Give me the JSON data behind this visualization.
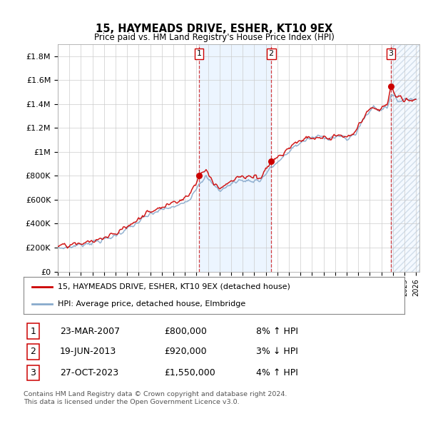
{
  "title": "15, HAYMEADS DRIVE, ESHER, KT10 9EX",
  "subtitle": "Price paid vs. HM Land Registry's House Price Index (HPI)",
  "ylabel_ticks": [
    "£0",
    "£200K",
    "£400K",
    "£600K",
    "£800K",
    "£1M",
    "£1.2M",
    "£1.4M",
    "£1.6M",
    "£1.8M"
  ],
  "ylabel_values": [
    0,
    200000,
    400000,
    600000,
    800000,
    1000000,
    1200000,
    1400000,
    1600000,
    1800000
  ],
  "ylim": [
    0,
    1900000
  ],
  "x_start_year": 1995,
  "x_end_year": 2026,
  "sale1": {
    "date_num": 2007.22,
    "price": 800000,
    "label": "1"
  },
  "sale2": {
    "date_num": 2013.47,
    "price": 920000,
    "label": "2"
  },
  "sale3": {
    "date_num": 2023.82,
    "price": 1550000,
    "label": "3"
  },
  "red_color": "#cc0000",
  "blue_line_color": "#88aacc",
  "shade_color": "#ddeeff",
  "grid_color": "#cccccc",
  "legend1_text": "15, HAYMEADS DRIVE, ESHER, KT10 9EX (detached house)",
  "legend2_text": "HPI: Average price, detached house, Elmbridge",
  "table_rows": [
    {
      "num": "1",
      "date": "23-MAR-2007",
      "price": "£800,000",
      "hpi": "8% ↑ HPI"
    },
    {
      "num": "2",
      "date": "19-JUN-2013",
      "price": "£920,000",
      "hpi": "3% ↓ HPI"
    },
    {
      "num": "3",
      "date": "27-OCT-2023",
      "price": "£1,550,000",
      "hpi": "4% ↑ HPI"
    }
  ],
  "footnote1": "Contains HM Land Registry data © Crown copyright and database right 2024.",
  "footnote2": "This data is licensed under the Open Government Licence v3.0."
}
